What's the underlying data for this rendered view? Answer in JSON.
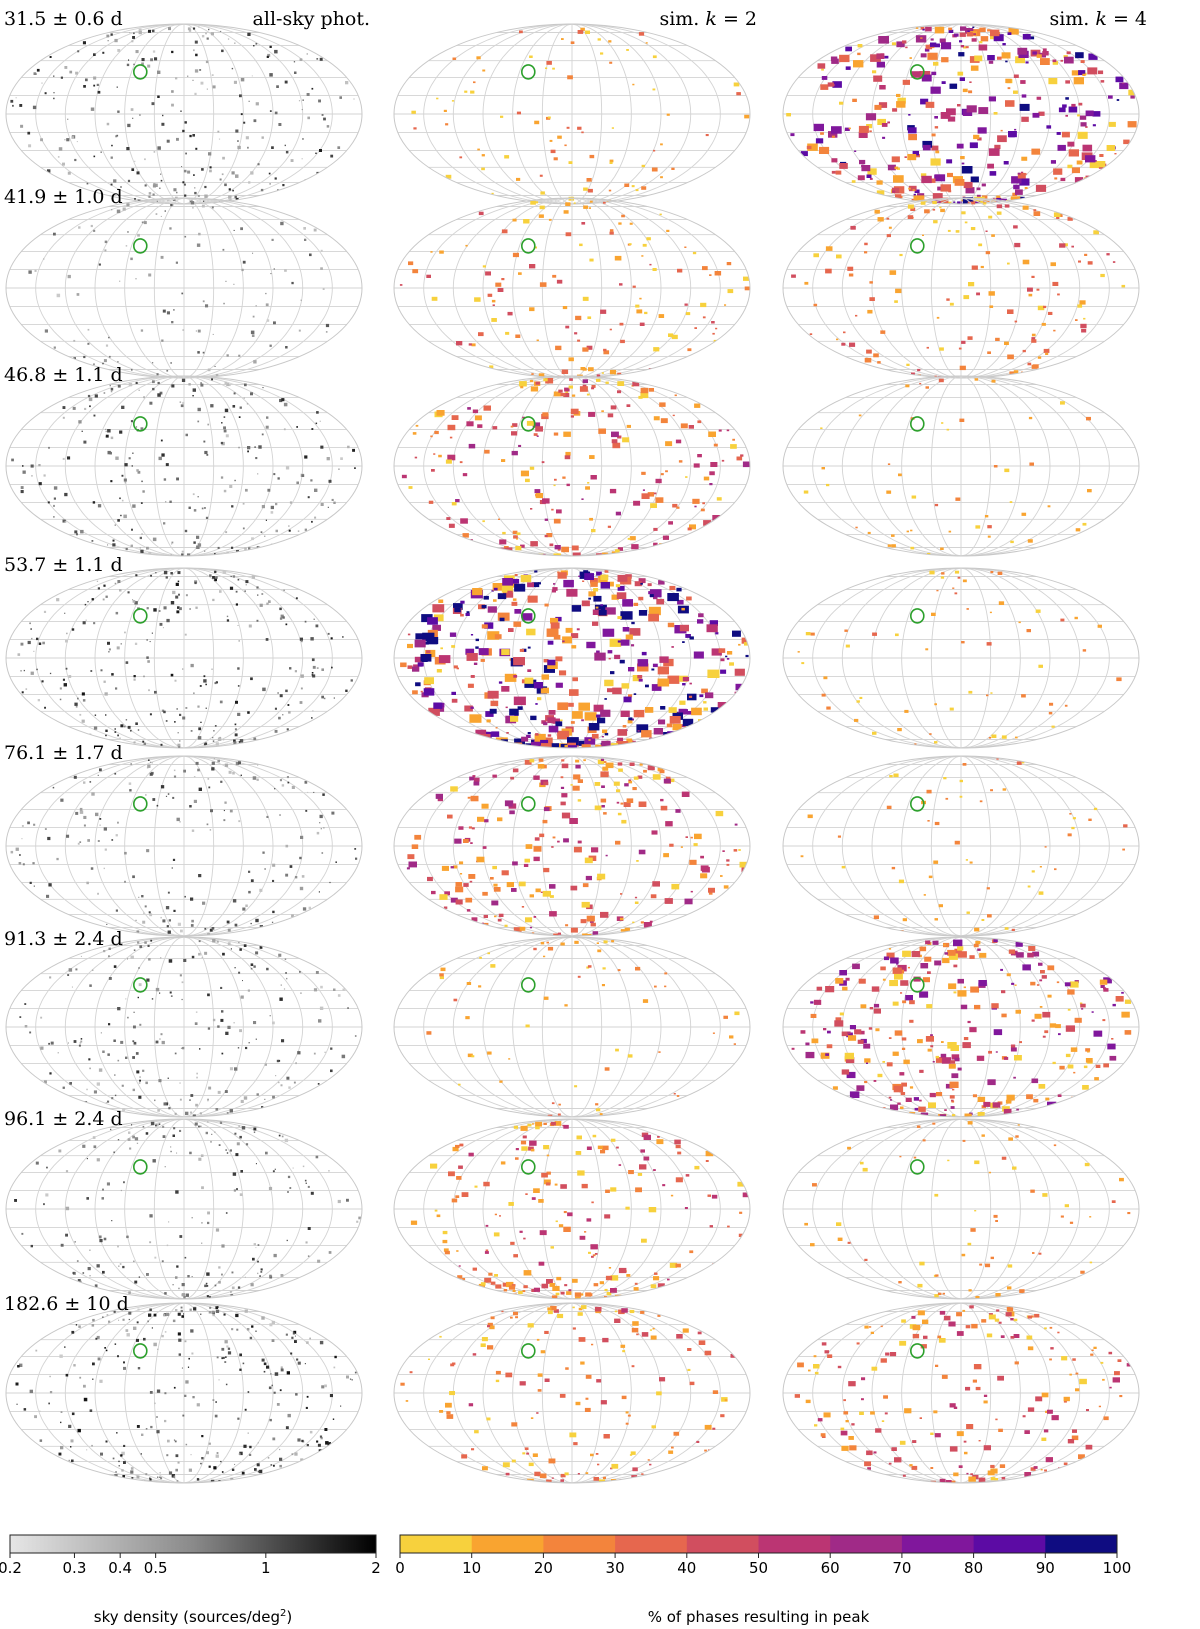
{
  "chart_data": {
    "type": "heatmap",
    "projection": "mollweide",
    "columns": [
      {
        "key": "phot",
        "title": "all-sky phot."
      },
      {
        "key": "k2",
        "title_prefix": "sim. ",
        "title_var": "k",
        "title_suffix": " = 2"
      },
      {
        "key": "k4",
        "title_prefix": "sim. ",
        "title_var": "k",
        "title_suffix": " = 4"
      }
    ],
    "rows": [
      {
        "period": "31.5 ± 0.6 d",
        "marker": [
          -50,
          35
        ],
        "phot_density": 0.42,
        "k2_coverage": 0.08,
        "k4_coverage": 0.65
      },
      {
        "period": "41.9 ± 1.0 d",
        "marker": [
          -50,
          35
        ],
        "phot_density": 0.15,
        "k2_coverage": 0.18,
        "k4_coverage": 0.2
      },
      {
        "period": "46.8 ± 1.1 d",
        "marker": [
          -50,
          35
        ],
        "phot_density": 0.4,
        "k2_coverage": 0.35,
        "k4_coverage": 0.02
      },
      {
        "period": "53.7 ± 1.1 d",
        "marker": [
          -50,
          35
        ],
        "phot_density": 0.45,
        "k2_coverage": 0.8,
        "k4_coverage": 0.04
      },
      {
        "period": "76.1 ± 1.7 d",
        "marker": [
          -50,
          35
        ],
        "phot_density": 0.3,
        "k2_coverage": 0.4,
        "k4_coverage": 0.03
      },
      {
        "period": "91.3 ± 2.4 d",
        "marker": [
          -50,
          35
        ],
        "phot_density": 0.35,
        "k2_coverage": 0.04,
        "k4_coverage": 0.5
      },
      {
        "period": "96.1 ± 2.4 d",
        "marker": [
          -50,
          35
        ],
        "phot_density": 0.3,
        "k2_coverage": 0.3,
        "k4_coverage": 0.05
      },
      {
        "period": "182.6 ± 10 d",
        "marker": [
          -50,
          35
        ],
        "phot_density": 0.5,
        "k2_coverage": 0.22,
        "k4_coverage": 0.3
      }
    ],
    "colorbars": {
      "density": {
        "label": "sky density (sources/deg",
        "label_sup": "2",
        "label_end": ")",
        "scale": "log",
        "range": [
          0.2,
          2
        ],
        "tick_values": [
          0.2,
          0.3,
          0.4,
          0.5,
          1,
          2
        ],
        "tick_labels": [
          "0.2",
          "0.3",
          "0.4",
          "0.5",
          "1",
          "2"
        ],
        "colormap": "greys"
      },
      "phases": {
        "label": "% of phases resulting in peak",
        "range": [
          0,
          100
        ],
        "tick_values": [
          0,
          10,
          20,
          30,
          40,
          50,
          60,
          70,
          80,
          90,
          100
        ],
        "tick_labels": [
          "0",
          "10",
          "20",
          "30",
          "40",
          "50",
          "60",
          "70",
          "80",
          "90",
          "100"
        ],
        "colormap": "plasma",
        "colors": [
          "#f7d13d",
          "#f9a430",
          "#f3843c",
          "#e6674e",
          "#d14e5f",
          "#bb3573",
          "#a02a87",
          "#80179c",
          "#5c0ba4",
          "#0f0c81"
        ]
      }
    },
    "marker_color": "#2ca02c",
    "grid": true
  }
}
